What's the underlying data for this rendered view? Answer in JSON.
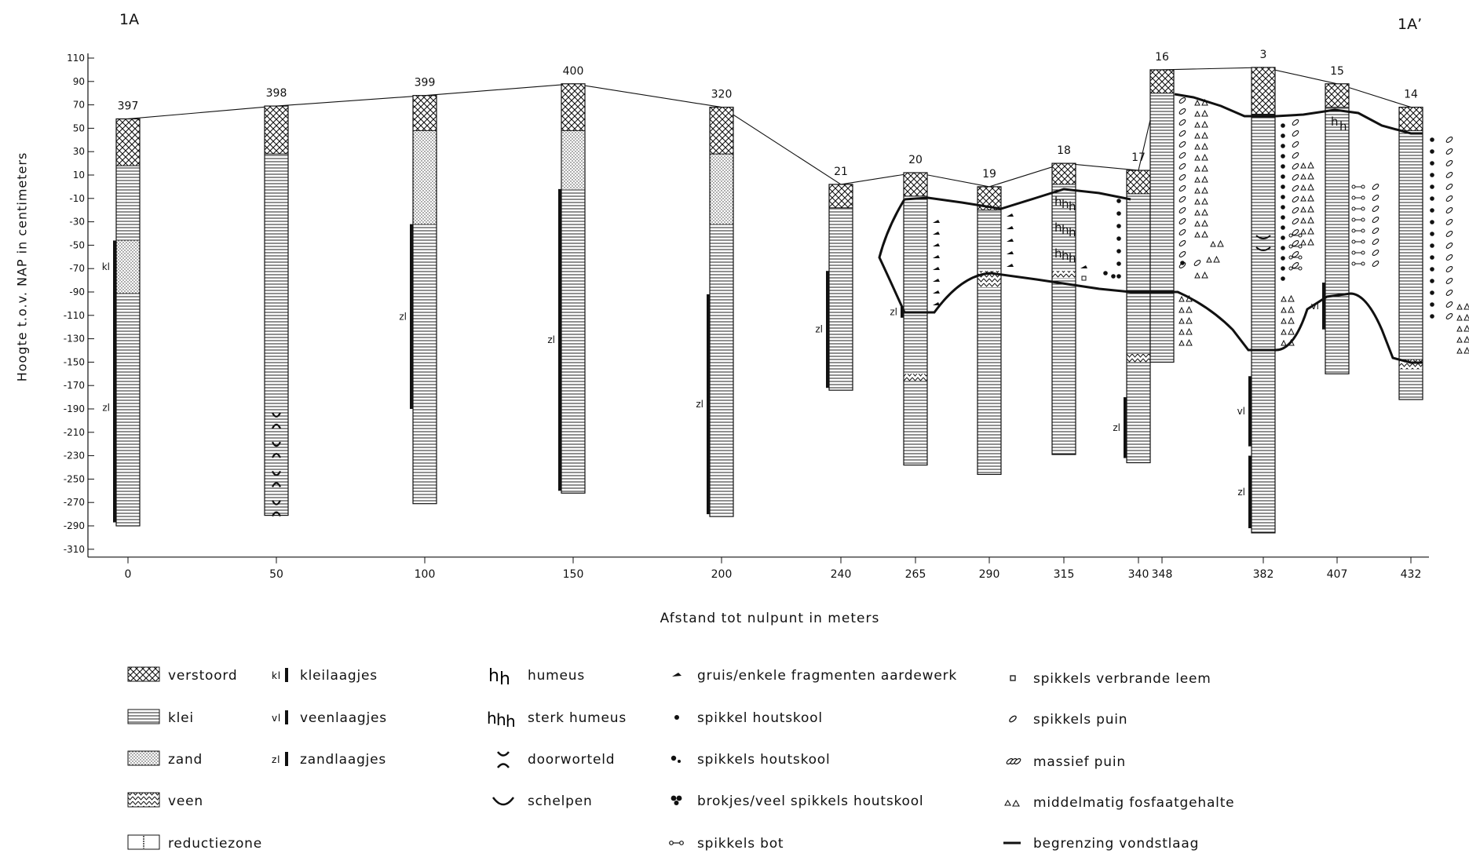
{
  "title_left": "1A",
  "title_right": "1A’",
  "y_axis_label": "Hoogte t.o.v. NAP in centimeters",
  "x_axis_label": "Afstand tot nulpunt in meters",
  "y_ticks": [
    110,
    90,
    70,
    50,
    30,
    10,
    -10,
    -30,
    -50,
    -70,
    -90,
    -110,
    -130,
    -150,
    -170,
    -190,
    -210,
    -230,
    -250,
    -270,
    -290,
    -310
  ],
  "x_ticks": [
    {
      "label": "0",
      "x": 0
    },
    {
      "label": "50",
      "x": 50
    },
    {
      "label": "100",
      "x": 100
    },
    {
      "label": "150",
      "x": 150
    },
    {
      "label": "200",
      "x": 200
    },
    {
      "label": "240",
      "x": 240
    },
    {
      "label": "265",
      "x": 265
    },
    {
      "label": "290",
      "x": 290
    },
    {
      "label": "315",
      "x": 315
    },
    {
      "label": "340",
      "x": 340
    },
    {
      "label": "348",
      "x": 348
    },
    {
      "label": "382",
      "x": 382
    },
    {
      "label": "407",
      "x": 407
    },
    {
      "label": "432",
      "x": 432
    }
  ],
  "boreholes": [
    {
      "id": "397",
      "x": 0,
      "top": 58,
      "bottom": -290,
      "disturbed_to": 18,
      "sand": [
        -46,
        -91
      ],
      "marks": [
        {
          "code": "kl",
          "from": -46,
          "to": -91
        },
        {
          "code": "zl",
          "from": -91,
          "to": -287
        }
      ]
    },
    {
      "id": "398",
      "x": 50,
      "top": 69,
      "bottom": -281,
      "disturbed_to": 28,
      "rooted": true
    },
    {
      "id": "399",
      "x": 100,
      "top": 78,
      "bottom": -271,
      "disturbed_to": 48,
      "sand": [
        48,
        -32
      ],
      "marks": [
        {
          "code": "zl",
          "from": -32,
          "to": -190
        }
      ]
    },
    {
      "id": "400",
      "x": 150,
      "top": 88,
      "bottom": -262,
      "disturbed_to": 48,
      "sand": [
        48,
        -2
      ],
      "marks": [
        {
          "code": "zl",
          "from": -2,
          "to": -260
        }
      ]
    },
    {
      "id": "320",
      "x": 200,
      "top": 68,
      "bottom": -282,
      "disturbed_to": 28,
      "sand": [
        28,
        -32
      ],
      "marks": [
        {
          "code": "zl",
          "from": -92,
          "to": -280
        }
      ]
    },
    {
      "id": "21",
      "x": 240,
      "top": 2,
      "bottom": -174,
      "disturbed_to": -18,
      "marks": [
        {
          "code": "zl",
          "from": -72,
          "to": -172
        }
      ]
    },
    {
      "id": "20",
      "x": 265,
      "top": 12,
      "bottom": -238,
      "disturbed_to": -8,
      "peat": [
        -160,
        -166
      ],
      "marks": [
        {
          "code": "zl",
          "from": -102,
          "to": -112
        }
      ]
    },
    {
      "id": "19",
      "x": 290,
      "top": 0,
      "bottom": -246,
      "disturbed_to": -20,
      "peat": [
        -72,
        -86
      ]
    },
    {
      "id": "18",
      "x": 315,
      "top": 20,
      "bottom": -229,
      "disturbed_to": 2,
      "peat": [
        -72,
        -78
      ]
    },
    {
      "id": "17",
      "x": 340,
      "top": 14,
      "bottom": -236,
      "disturbed_to": -6,
      "peat": [
        -143,
        -150
      ],
      "marks": [
        {
          "code": "zl",
          "from": -180,
          "to": -232
        }
      ]
    },
    {
      "id": "16",
      "x": 348,
      "top": 100,
      "bottom": -150,
      "disturbed_to": 80
    },
    {
      "id": "3",
      "x": 382,
      "top": 102,
      "bottom": -296,
      "disturbed_to": 62,
      "marks": [
        {
          "code": "vl",
          "from": -162,
          "to": -222
        },
        {
          "code": "zl",
          "from": -230,
          "to": -292
        }
      ]
    },
    {
      "id": "15",
      "x": 407,
      "top": 88,
      "bottom": -160,
      "disturbed_to": 68,
      "marks": [
        {
          "code": "vl",
          "from": -82,
          "to": -122
        }
      ]
    },
    {
      "id": "14",
      "x": 432,
      "top": 68,
      "bottom": -182,
      "disturbed_to": 48,
      "peat": [
        -148,
        -156
      ]
    }
  ],
  "legend": {
    "col1": [
      {
        "symbol": "hatch-cross",
        "label": "verstoord"
      },
      {
        "symbol": "hatch-horizontal",
        "label": "klei"
      },
      {
        "symbol": "dots",
        "label": "zand"
      },
      {
        "symbol": "triangles",
        "label": "veen"
      },
      {
        "symbol": "reduction",
        "label": "reductiezone"
      }
    ],
    "col2": [
      {
        "code": "kl",
        "label": "kleilaagjes"
      },
      {
        "code": "vl",
        "label": "veenlaagjes"
      },
      {
        "code": "zl",
        "label": "zandlaagjes"
      }
    ],
    "col3": [
      {
        "symbol": "hh",
        "label": "humeus"
      },
      {
        "symbol": "hhh",
        "label": "sterk humeus"
      },
      {
        "symbol": "rooted",
        "label": "doorworteld"
      },
      {
        "symbol": "shell",
        "label": "schelpen"
      }
    ],
    "col4": [
      {
        "symbol": "grit",
        "label": "gruis/enkele fragmenten aardewerk"
      },
      {
        "symbol": "dot",
        "label": "spikkel houtskool"
      },
      {
        "symbol": "dots2",
        "label": "spikkels houtskool"
      },
      {
        "symbol": "dots3",
        "label": "brokjes/veel spikkels houtskool"
      },
      {
        "symbol": "bone",
        "label": "spikkels bot"
      }
    ],
    "col5": [
      {
        "symbol": "square",
        "label": "spikkels verbrande leem"
      },
      {
        "symbol": "debris",
        "label": "spikkels puin"
      },
      {
        "symbol": "massive-debris",
        "label": "massief puin"
      },
      {
        "symbol": "phosphate",
        "label": "middelmatig fosfaatgehalte"
      },
      {
        "symbol": "boundary",
        "label": "begrenzing vondstlaag"
      }
    ]
  }
}
